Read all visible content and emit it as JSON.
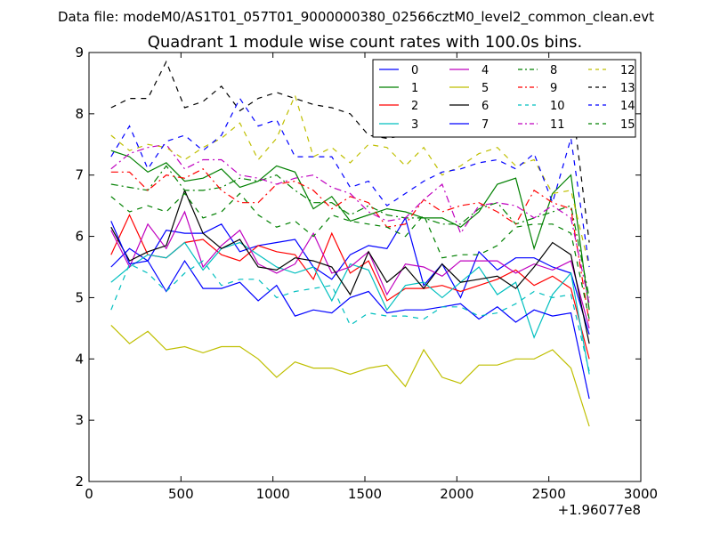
{
  "chart_data": {
    "type": "line",
    "supertitle": "Data file: modeM0/AS1T01_057T01_9000000380_02566cztM0_level2_common_clean.evt",
    "title": "Quadrant 1 module wise count rates with 100.0s bins.",
    "xlabel": "",
    "ylabel": "",
    "x_offset_label": "+1.96077e8",
    "xlim": [
      0,
      3000
    ],
    "ylim": [
      2,
      9
    ],
    "xticks": [
      "0",
      "500",
      "1000",
      "1500",
      "2000",
      "2500",
      "3000"
    ],
    "yticks": [
      "2",
      "3",
      "4",
      "5",
      "6",
      "7",
      "8",
      "9"
    ],
    "legend_position": "top-right",
    "x": [
      120,
      220,
      320,
      420,
      520,
      620,
      720,
      820,
      920,
      1020,
      1120,
      1220,
      1320,
      1420,
      1520,
      1620,
      1720,
      1820,
      1920,
      2020,
      2120,
      2220,
      2320,
      2420,
      2520,
      2620,
      2720
    ],
    "series": [
      {
        "name": "0",
        "color": "#0000ff",
        "dash": "solid",
        "values": [
          5.5,
          5.8,
          5.6,
          6.1,
          6.05,
          6.05,
          6.2,
          5.75,
          5.85,
          5.9,
          5.95,
          5.5,
          5.3,
          5.7,
          5.85,
          5.8,
          6.3,
          5.2,
          5.55,
          5.0,
          5.75,
          5.45,
          5.65,
          5.65,
          5.5,
          5.4,
          4.4
        ]
      },
      {
        "name": "1",
        "color": "#008000",
        "dash": "solid",
        "values": [
          7.4,
          7.3,
          7.05,
          7.2,
          6.9,
          6.95,
          7.1,
          6.8,
          6.9,
          7.15,
          7.05,
          6.45,
          6.65,
          6.25,
          6.35,
          6.45,
          6.4,
          6.3,
          6.3,
          6.15,
          6.4,
          6.85,
          6.95,
          5.8,
          6.7,
          7.0,
          4.8
        ]
      },
      {
        "name": "2",
        "color": "#ff0000",
        "dash": "solid",
        "values": [
          5.7,
          6.35,
          5.7,
          5.65,
          5.9,
          5.95,
          5.7,
          5.6,
          5.85,
          5.75,
          5.7,
          5.3,
          6.05,
          5.4,
          5.6,
          4.95,
          5.15,
          5.15,
          5.2,
          5.1,
          5.2,
          5.3,
          5.45,
          5.2,
          5.35,
          5.15,
          4.0
        ]
      },
      {
        "name": "3",
        "color": "#00bfbf",
        "dash": "solid",
        "values": [
          5.25,
          5.5,
          5.7,
          5.65,
          5.9,
          5.45,
          5.8,
          5.9,
          5.7,
          5.5,
          5.4,
          5.5,
          4.95,
          5.55,
          5.45,
          4.8,
          5.2,
          5.25,
          5.0,
          5.25,
          5.5,
          5.05,
          5.25,
          4.35,
          5.05,
          5.4,
          3.75
        ]
      },
      {
        "name": "4",
        "color": "#bf00bf",
        "dash": "solid",
        "values": [
          6.1,
          5.5,
          6.2,
          5.8,
          6.4,
          5.5,
          5.85,
          6.1,
          5.55,
          5.4,
          5.55,
          6.05,
          5.4,
          5.5,
          5.75,
          5.05,
          5.55,
          5.5,
          5.35,
          5.6,
          5.6,
          5.6,
          5.4,
          5.55,
          5.45,
          5.6,
          4.5
        ]
      },
      {
        "name": "5",
        "color": "#bfbf00",
        "dash": "solid",
        "values": [
          4.55,
          4.25,
          4.45,
          4.15,
          4.2,
          4.1,
          4.2,
          4.2,
          4.0,
          3.7,
          3.95,
          3.85,
          3.85,
          3.75,
          3.85,
          3.9,
          3.55,
          4.15,
          3.7,
          3.6,
          3.9,
          3.9,
          4.0,
          4.0,
          4.15,
          3.85,
          2.9
        ]
      },
      {
        "name": "6",
        "color": "#000000",
        "dash": "solid",
        "values": [
          6.15,
          5.6,
          5.75,
          5.85,
          6.75,
          6.05,
          5.8,
          5.95,
          5.5,
          5.45,
          5.65,
          5.6,
          5.5,
          5.05,
          5.75,
          5.25,
          5.5,
          5.15,
          5.55,
          5.25,
          5.3,
          5.35,
          5.15,
          5.5,
          5.9,
          5.7,
          4.25
        ]
      },
      {
        "name": "7",
        "color": "#0000ff",
        "dash": "solid",
        "values": [
          6.25,
          5.55,
          5.6,
          5.1,
          5.6,
          5.15,
          5.15,
          5.25,
          4.95,
          5.2,
          4.7,
          4.8,
          4.75,
          5.0,
          5.1,
          4.75,
          4.8,
          4.8,
          4.85,
          4.9,
          4.65,
          4.85,
          4.6,
          4.8,
          4.7,
          4.75,
          3.35
        ]
      },
      {
        "name": "8",
        "color": "#008000",
        "dash": "dashdot",
        "values": [
          6.85,
          6.8,
          6.75,
          7.15,
          6.75,
          6.75,
          6.8,
          6.95,
          6.9,
          7.0,
          6.75,
          6.55,
          6.55,
          6.35,
          6.5,
          6.35,
          6.3,
          6.3,
          6.2,
          6.2,
          6.45,
          6.55,
          6.2,
          6.3,
          6.4,
          6.5,
          5.0
        ]
      },
      {
        "name": "9",
        "color": "#ff0000",
        "dash": "dashdot",
        "values": [
          7.05,
          7.05,
          6.75,
          7.0,
          6.95,
          7.1,
          6.75,
          6.55,
          6.55,
          6.85,
          6.9,
          6.75,
          6.45,
          6.65,
          6.55,
          6.15,
          6.2,
          6.6,
          6.4,
          6.5,
          6.55,
          6.4,
          6.2,
          6.75,
          6.55,
          6.45,
          4.6
        ]
      },
      {
        "name": "10",
        "color": "#00bfbf",
        "dash": "dashed",
        "values": [
          4.8,
          5.55,
          5.4,
          5.1,
          5.4,
          5.6,
          5.2,
          5.3,
          5.3,
          5.0,
          5.1,
          5.15,
          5.2,
          4.55,
          4.75,
          4.7,
          4.7,
          4.65,
          4.85,
          4.85,
          4.7,
          4.75,
          4.9,
          5.1,
          5.0,
          5.05,
          3.8
        ]
      },
      {
        "name": "11",
        "color": "#bf00bf",
        "dash": "dashdot",
        "values": [
          7.1,
          7.35,
          7.45,
          7.5,
          7.1,
          7.25,
          7.25,
          7.0,
          6.95,
          6.85,
          6.95,
          7.0,
          6.8,
          6.7,
          6.4,
          6.25,
          6.3,
          6.6,
          6.85,
          6.05,
          6.5,
          6.55,
          6.5,
          6.3,
          6.5,
          6.3,
          4.9
        ]
      },
      {
        "name": "12",
        "color": "#bfbf00",
        "dash": "dashed",
        "values": [
          7.65,
          7.4,
          7.5,
          7.45,
          7.25,
          7.45,
          7.6,
          7.85,
          7.25,
          7.6,
          8.3,
          7.3,
          7.45,
          7.2,
          7.5,
          7.45,
          7.15,
          7.45,
          7.0,
          7.15,
          7.35,
          7.45,
          7.15,
          7.25,
          6.7,
          6.75,
          5.5
        ]
      },
      {
        "name": "13",
        "color": "#000000",
        "dash": "dashed",
        "values": [
          8.1,
          8.25,
          8.25,
          8.85,
          8.1,
          8.2,
          8.45,
          8.05,
          8.25,
          8.35,
          8.25,
          8.15,
          8.1,
          8.0,
          7.65,
          7.6,
          7.65,
          8.25,
          7.8,
          7.95,
          7.9,
          8.0,
          8.2,
          8.2,
          8.25,
          8.35,
          5.9
        ]
      },
      {
        "name": "14",
        "color": "#0000ff",
        "dash": "dashed",
        "values": [
          7.3,
          7.8,
          7.1,
          7.55,
          7.65,
          7.4,
          7.65,
          8.25,
          7.8,
          7.9,
          7.3,
          7.3,
          7.3,
          6.8,
          6.9,
          6.5,
          6.7,
          6.9,
          7.05,
          7.1,
          7.2,
          7.25,
          7.1,
          7.35,
          6.55,
          7.6,
          5.5
        ]
      },
      {
        "name": "15",
        "color": "#008000",
        "dash": "dashed",
        "values": [
          6.65,
          6.4,
          6.5,
          6.4,
          6.7,
          6.3,
          6.4,
          6.7,
          6.35,
          6.15,
          6.25,
          6.0,
          6.35,
          6.25,
          6.2,
          6.15,
          6.0,
          6.35,
          5.65,
          5.7,
          5.7,
          5.85,
          6.15,
          6.2,
          6.2,
          6.05,
          4.65
        ]
      }
    ]
  }
}
